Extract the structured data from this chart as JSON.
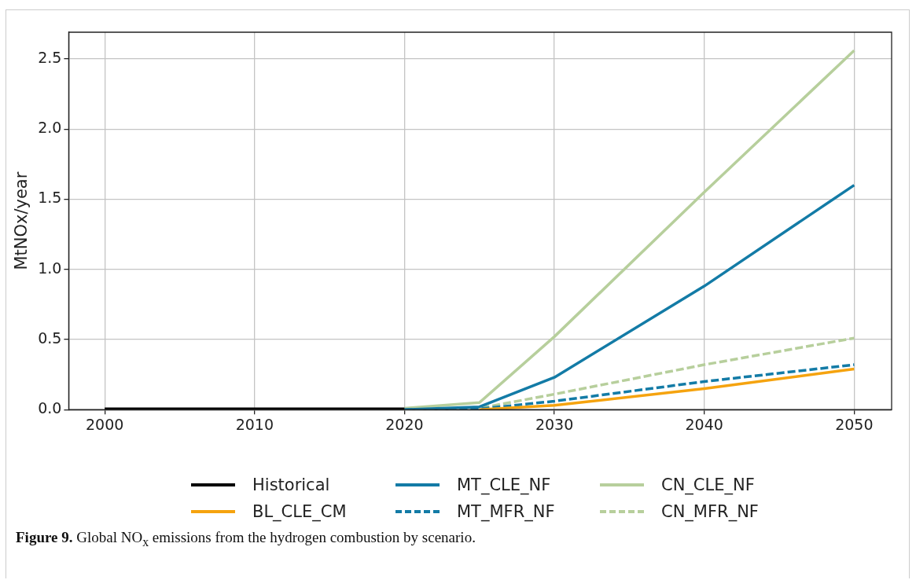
{
  "chart_data": {
    "type": "line",
    "ylabel": "MtNOx/year",
    "xlim": [
      1997.6,
      2052.5
    ],
    "xticks": [
      2000,
      2010,
      2020,
      2030,
      2040,
      2050
    ],
    "ylim": [
      0,
      2.69
    ],
    "yticks": [
      {
        "value": 0,
        "label": "0.0"
      },
      {
        "value": 0.5,
        "label": "0.5"
      },
      {
        "value": 1,
        "label": "1.0"
      },
      {
        "value": 1.5,
        "label": "1.5"
      },
      {
        "value": 2,
        "label": "2.0"
      },
      {
        "value": 2.5,
        "label": "2.5"
      }
    ],
    "grid": true,
    "legend": "bottom",
    "marker": "none",
    "series": [
      {
        "name": "Historical",
        "color": "#000000",
        "line_style": "solid",
        "x": [
          2000,
          2005,
          2010,
          2015,
          2020
        ],
        "values": [
          0.005,
          0.005,
          0.005,
          0.005,
          0.005
        ]
      },
      {
        "name": "BL_CLE_CM",
        "color": "#f5a30f",
        "line_style": "solid",
        "x": [
          2025,
          2030,
          2040,
          2050
        ],
        "values": [
          0,
          0.03,
          0.15,
          0.29
        ]
      },
      {
        "name": "MT_CLE_NF",
        "color": "#137ba6",
        "line_style": "solid",
        "x": [
          2020,
          2025,
          2030,
          2040,
          2050
        ],
        "values": [
          0,
          0.02,
          0.23,
          0.88,
          1.6
        ]
      },
      {
        "name": "MT_MFR_NF",
        "color": "#137ba6",
        "line_style": "dashed",
        "x": [
          2020,
          2025,
          2030,
          2040,
          2050
        ],
        "values": [
          0,
          0.005,
          0.06,
          0.2,
          0.32
        ]
      },
      {
        "name": "CN_CLE_NF",
        "color": "#b7cf9c",
        "line_style": "solid",
        "x": [
          2020,
          2025,
          2030,
          2040,
          2050
        ],
        "values": [
          0.01,
          0.05,
          0.52,
          1.55,
          2.56
        ]
      },
      {
        "name": "CN_MFR_NF",
        "color": "#b7cf9c",
        "line_style": "dashed",
        "x": [
          2020,
          2025,
          2030,
          2040,
          2050
        ],
        "values": [
          0,
          0.01,
          0.11,
          0.32,
          0.51
        ]
      }
    ],
    "annotations": [
      "Figure 9. Global NO$_{x}$ emissions from the hydrogen combustion by scenario."
    ]
  }
}
